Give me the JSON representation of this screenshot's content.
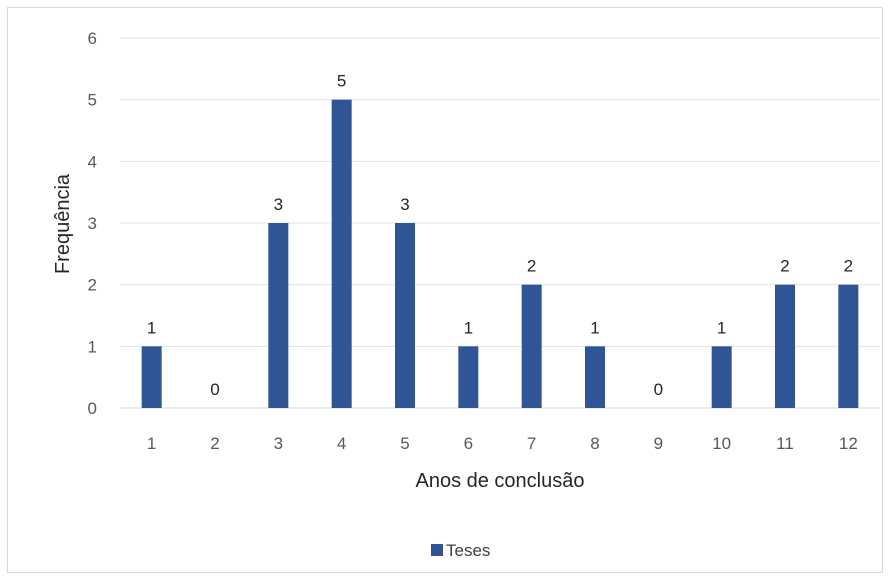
{
  "chart_data": {
    "type": "bar",
    "categories": [
      "1",
      "2",
      "3",
      "4",
      "5",
      "6",
      "7",
      "8",
      "9",
      "10",
      "11",
      "12"
    ],
    "series": [
      {
        "name": "Teses",
        "values": [
          1,
          0,
          3,
          5,
          3,
          1,
          2,
          1,
          0,
          1,
          2,
          2
        ],
        "color": "#2f5597"
      }
    ],
    "xlabel": "Anos de conclusão",
    "ylabel": "Frequência",
    "ylim": [
      0,
      6
    ],
    "yticks": [
      "0",
      "1",
      "2",
      "3",
      "4",
      "5",
      "6"
    ],
    "grid": true,
    "data_labels": true,
    "legend_position": "bottom"
  }
}
